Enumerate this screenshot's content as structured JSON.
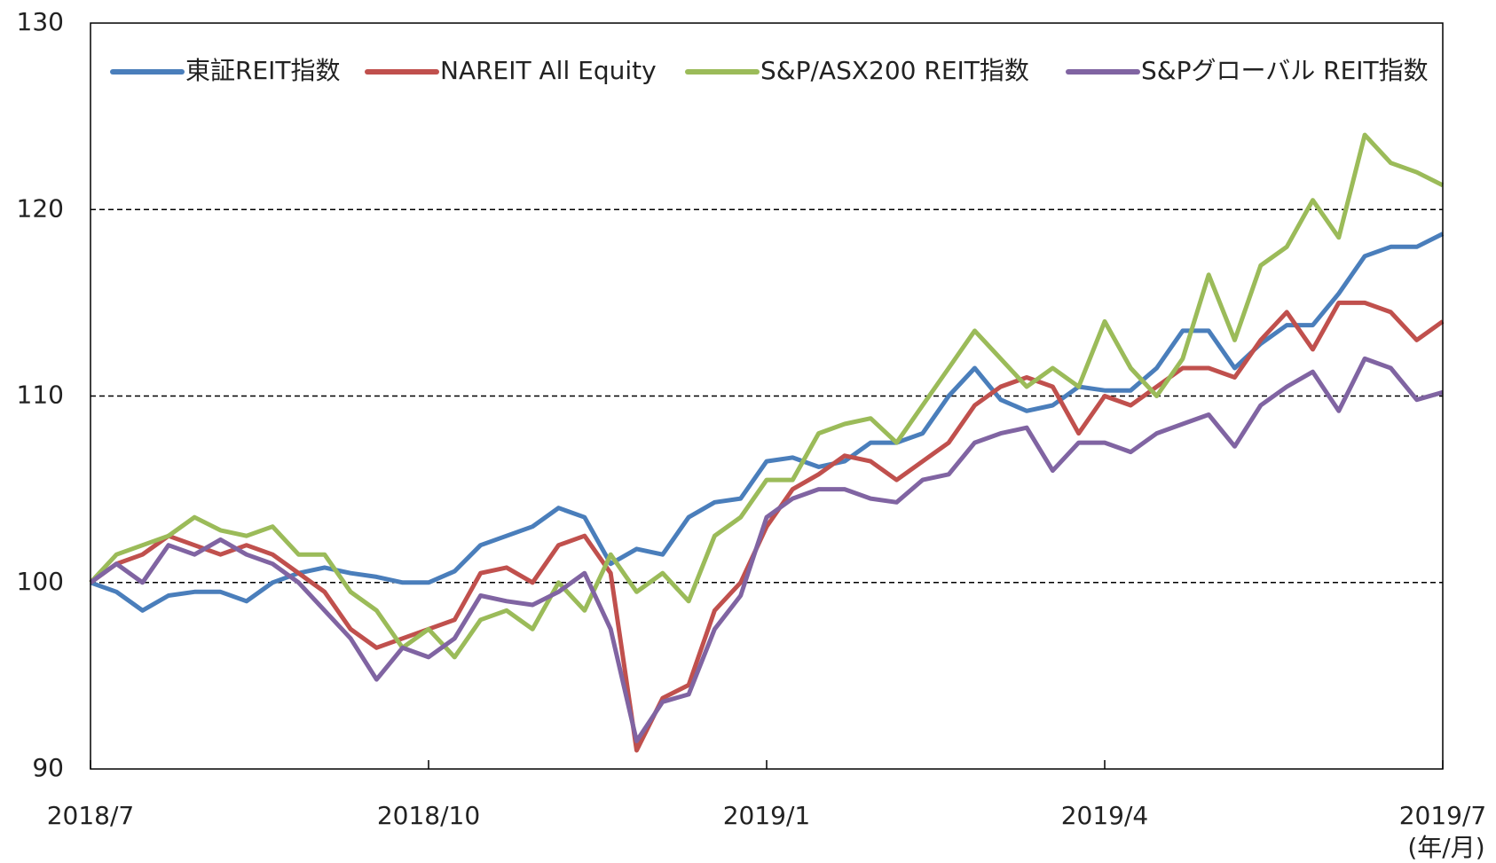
{
  "chart_data": {
    "type": "line",
    "categories": [
      "2018/7",
      null,
      null,
      null,
      null,
      null,
      null,
      null,
      null,
      null,
      null,
      null,
      null,
      "2018/10",
      null,
      null,
      null,
      null,
      null,
      null,
      null,
      null,
      null,
      null,
      null,
      null,
      "2019/1",
      null,
      null,
      null,
      null,
      null,
      null,
      null,
      null,
      null,
      null,
      null,
      null,
      "2019/4",
      null,
      null,
      null,
      null,
      null,
      null,
      null,
      null,
      null,
      null,
      null,
      null,
      "2019/7"
    ],
    "x_label": "(年/月)",
    "series": [
      {
        "name": "東証REIT指数",
        "color": "#4a7ebb",
        "values": [
          100,
          99.5,
          98.5,
          99.3,
          99.5,
          99.5,
          99.0,
          100,
          100.5,
          100.8,
          100.5,
          100.3,
          100.0,
          100.0,
          100.6,
          102.0,
          102.5,
          103.0,
          104.0,
          103.5,
          101.0,
          101.8,
          101.5,
          103.5,
          104.3,
          104.5,
          106.5,
          106.7,
          106.2,
          106.5,
          107.5,
          107.5,
          108.0,
          110.0,
          111.5,
          109.8,
          109.2,
          109.5,
          110.5,
          110.3,
          110.3,
          111.5,
          113.5,
          113.5,
          111.5,
          112.8,
          113.8,
          113.8,
          115.5,
          117.5,
          118.0,
          118.0,
          118.7
        ]
      },
      {
        "name": "NAREIT All Equity",
        "color": "#c0504d",
        "values": [
          100,
          101,
          101.5,
          102.5,
          102.0,
          101.5,
          102.0,
          101.5,
          100.5,
          99.5,
          97.5,
          96.5,
          97.0,
          97.5,
          98.0,
          100.5,
          100.8,
          100.0,
          102.0,
          102.5,
          100.5,
          91.0,
          93.8,
          94.5,
          98.5,
          100.0,
          103.0,
          105.0,
          105.8,
          106.8,
          106.5,
          105.5,
          106.5,
          107.5,
          109.5,
          110.5,
          111.0,
          110.5,
          108.0,
          110.0,
          109.5,
          110.5,
          111.5,
          111.5,
          111.0,
          113.0,
          114.5,
          112.5,
          115.0,
          115.0,
          114.5,
          113.0,
          114.0
        ]
      },
      {
        "name": "S&P/ASX200 REIT指数",
        "color": "#9bbb59",
        "values": [
          100,
          101.5,
          102.0,
          102.5,
          103.5,
          102.8,
          102.5,
          103.0,
          101.5,
          101.5,
          99.5,
          98.5,
          96.5,
          97.5,
          96.0,
          98.0,
          98.5,
          97.5,
          100.0,
          98.5,
          101.5,
          99.5,
          100.5,
          99.0,
          102.5,
          103.5,
          105.5,
          105.5,
          108.0,
          108.5,
          108.8,
          107.5,
          109.5,
          111.5,
          113.5,
          112.0,
          110.5,
          111.5,
          110.5,
          114.0,
          111.5,
          110.0,
          112.0,
          116.5,
          113.0,
          117.0,
          118.0,
          120.5,
          118.5,
          124.0,
          122.5,
          122.0,
          121.3
        ]
      },
      {
        "name": "S&Pグローバル REIT指数",
        "color": "#8064a2",
        "values": [
          100,
          101.0,
          100.0,
          102.0,
          101.5,
          102.3,
          101.5,
          101.0,
          100.0,
          98.5,
          97.0,
          94.8,
          96.5,
          96.0,
          97.0,
          99.3,
          99.0,
          98.8,
          99.5,
          100.5,
          97.5,
          91.5,
          93.6,
          94.0,
          97.5,
          99.3,
          103.5,
          104.5,
          105.0,
          105.0,
          104.5,
          104.3,
          105.5,
          105.8,
          107.5,
          108.0,
          108.3,
          106.0,
          107.5,
          107.5,
          107.0,
          108.0,
          108.5,
          109.0,
          107.3,
          109.5,
          110.5,
          111.3,
          109.2,
          112.0,
          111.5,
          109.8,
          110.2
        ]
      }
    ],
    "ylim": [
      90,
      130
    ],
    "yticks": [
      90,
      100,
      110,
      120,
      130
    ],
    "grid": true,
    "legend": "top"
  }
}
